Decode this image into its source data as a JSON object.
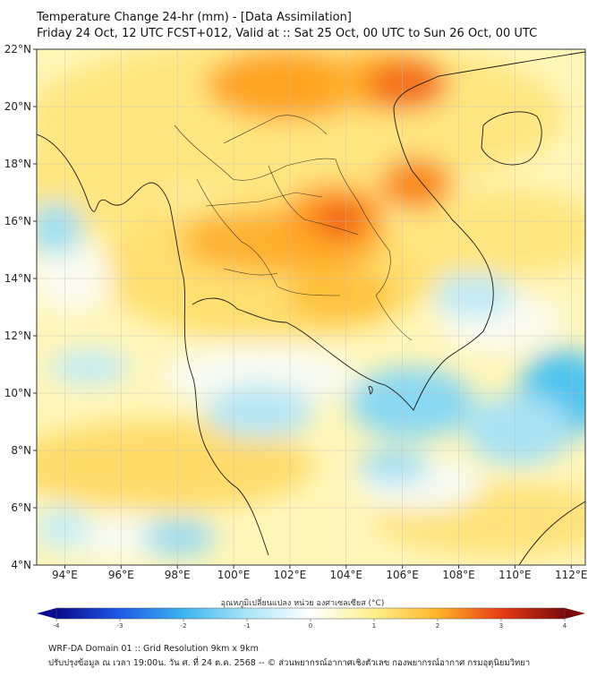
{
  "header": {
    "title": "Temperature Change 24-hr (mm) - [Data Assimilation]",
    "subtitle": "Friday 24 Oct, 12 UTC FCST+012, Valid at :: Sat 25 Oct, 00 UTC to Sun 26 Oct, 00 UTC"
  },
  "map": {
    "lat_labels": [
      "22°N",
      "20°N",
      "18°N",
      "16°N",
      "14°N",
      "12°N",
      "10°N",
      "8°N",
      "6°N",
      "4°N"
    ],
    "lon_labels": [
      "94°E",
      "96°E",
      "98°E",
      "100°E",
      "102°E",
      "104°E",
      "106°E",
      "108°E",
      "110°E",
      "112°E"
    ],
    "lat_range": [
      4,
      22
    ],
    "lon_range": [
      93,
      112.5
    ],
    "warm_areas": [
      {
        "lon": 102.2,
        "lat": 20.5,
        "value": 2.4
      },
      {
        "lon": 105.8,
        "lat": 20.9,
        "value": 2.8
      },
      {
        "lon": 103.6,
        "lat": 16.3,
        "value": 3.0
      },
      {
        "lon": 106.5,
        "lat": 17.3,
        "value": 2.6
      }
    ],
    "cool_areas": [
      {
        "lon": 111.8,
        "lat": 9.8,
        "value": -1.5
      },
      {
        "lon": 106.3,
        "lat": 10.2,
        "value": -1.1
      },
      {
        "lon": 93.5,
        "lat": 15.5,
        "value": -0.9
      }
    ]
  },
  "colorbar": {
    "title": "อุณหภูมิเปลี่ยนแปลง หน่วย องศาเซลเซียส (°C)",
    "ticks": [
      "-4",
      "-3",
      "-2",
      "-1",
      "0",
      "1",
      "2",
      "3",
      "4"
    ],
    "min": -4,
    "max": 4,
    "colors": [
      "#0a0a8c",
      "#1e5ae6",
      "#3cb4f0",
      "#aae6f8",
      "#ffffff",
      "#fff08c",
      "#ffb428",
      "#e63c14",
      "#7a0a0a"
    ]
  },
  "footer": {
    "line1": "WRF-DA Domain 01 :: Grid Resolution 9km x 9km",
    "line2": "ปรับปรุงข้อมูล ณ เวลา 19:00น. วัน ศ. ที่ 24 ต.ค. 2568 -- © ส่วนพยากรณ์อากาศเชิงตัวเลข กองพยากรณ์อากาศ กรมอุตุนิยมวิทยา"
  }
}
